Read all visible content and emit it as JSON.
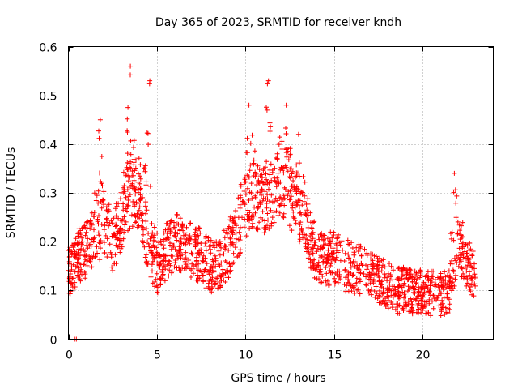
{
  "chart_data": {
    "type": "scatter",
    "title": "Day 365 of 2023, SRMTID for receiver kndh",
    "xlabel": "GPS time / hours",
    "ylabel": "SRMTID / TECUs",
    "xlim": [
      0,
      24
    ],
    "ylim": [
      0,
      0.6
    ],
    "x_ticks": [
      0,
      5,
      10,
      15,
      20
    ],
    "x_tick_labels": [
      "0",
      "5",
      "10",
      "15",
      "20"
    ],
    "y_ticks": [
      0,
      0.1,
      0.2,
      0.3,
      0.4,
      0.5,
      0.6
    ],
    "y_tick_labels": [
      "0",
      "0.1",
      "0.2",
      "0.3",
      "0.4",
      "0.5",
      "0.6"
    ],
    "grid": true,
    "marker": "+",
    "series_color": "#ff0000",
    "trend_profile": {
      "x": [
        0.0,
        0.5,
        1.0,
        1.5,
        2.0,
        2.5,
        3.0,
        3.5,
        4.0,
        4.5,
        5.0,
        5.5,
        6.0,
        6.5,
        7.0,
        7.5,
        8.0,
        8.5,
        9.0,
        9.5,
        10.0,
        10.5,
        11.0,
        11.5,
        12.0,
        12.5,
        13.0,
        13.5,
        14.0,
        14.5,
        15.0,
        15.5,
        16.0,
        16.5,
        17.0,
        17.5,
        18.0,
        18.5,
        19.0,
        19.5,
        20.0,
        20.5,
        21.0,
        21.5,
        22.0,
        22.5,
        23.0
      ],
      "y": [
        0.13,
        0.17,
        0.18,
        0.21,
        0.24,
        0.2,
        0.24,
        0.3,
        0.3,
        0.2,
        0.14,
        0.18,
        0.2,
        0.19,
        0.18,
        0.17,
        0.15,
        0.15,
        0.18,
        0.22,
        0.27,
        0.3,
        0.28,
        0.3,
        0.33,
        0.3,
        0.27,
        0.23,
        0.17,
        0.16,
        0.17,
        0.15,
        0.15,
        0.14,
        0.13,
        0.12,
        0.11,
        0.1,
        0.1,
        0.095,
        0.095,
        0.095,
        0.09,
        0.1,
        0.2,
        0.16,
        0.13
      ]
    },
    "peaks": [
      {
        "x": 1.8,
        "y": 0.45
      },
      {
        "x": 3.5,
        "y": 0.56
      },
      {
        "x": 4.6,
        "y": 0.53
      },
      {
        "x": 10.2,
        "y": 0.48
      },
      {
        "x": 11.3,
        "y": 0.53
      },
      {
        "x": 12.3,
        "y": 0.48
      },
      {
        "x": 13.0,
        "y": 0.42
      },
      {
        "x": 21.8,
        "y": 0.34
      }
    ],
    "scatter_spread": 0.06,
    "point_count": 1900
  }
}
